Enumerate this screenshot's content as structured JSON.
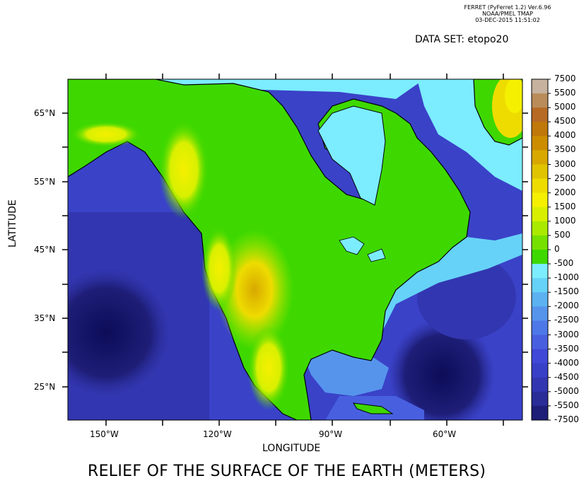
{
  "header": {
    "program": "FERRET (PyFerret 1.2) Ver.6.96",
    "org": "NOAA/PMEL TMAP",
    "date": "03-DEC-2015 11:51:02"
  },
  "dataset_label": "DATA SET: etopo20",
  "title": "RELIEF OF THE SURFACE OF THE EARTH (METERS)",
  "axes": {
    "xlabel": "LONGITUDE",
    "ylabel": "LATITUDE",
    "x_range": [
      -160,
      -27
    ],
    "y_range": [
      20,
      70
    ],
    "x_ticks": [
      "150°W",
      "120°W",
      "90°W",
      "60°W"
    ],
    "y_ticks": [
      "65°N",
      "55°N",
      "45°N",
      "35°N",
      "25°N"
    ]
  },
  "colorbar": {
    "labels": [
      "7500",
      "5500",
      "5000",
      "4500",
      "4000",
      "3500",
      "3000",
      "2500",
      "2000",
      "1500",
      "1000",
      "500",
      "0",
      "-500",
      "-1000",
      "-1500",
      "-2000",
      "-2500",
      "-3000",
      "-3500",
      "-4000",
      "-4500",
      "-5000",
      "-5500",
      "-7500"
    ],
    "colors": [
      "#c6b29e",
      "#b98c5a",
      "#b76a24",
      "#c0780a",
      "#cc8e00",
      "#d8a800",
      "#e0c400",
      "#eedc00",
      "#f5f000",
      "#d8f000",
      "#aaea00",
      "#76e000",
      "#3ed800",
      "#7cecff",
      "#66d2f8",
      "#5cb2f0",
      "#5694ec",
      "#4e78e8",
      "#4860e0",
      "#4048d8",
      "#3840c8",
      "#3236b0",
      "#2a2c98",
      "#1e1e78",
      "#0c0c58"
    ]
  },
  "map": {
    "land_color": "#3ed800",
    "shelf_color": "#7cecff",
    "deep_color": "#3a42c8",
    "abyss_color": "#0c0c58"
  }
}
